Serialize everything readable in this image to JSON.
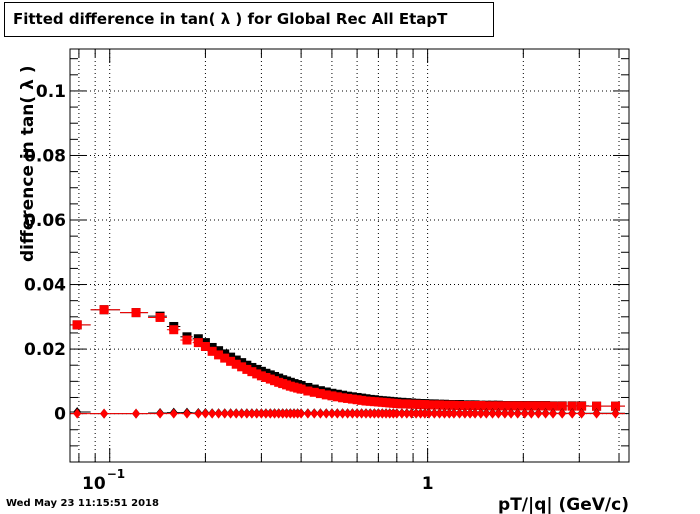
{
  "title": "Fitted difference in tan( λ ) for Global Rec All EtapT",
  "footer": "Wed May 23 11:15:51 2018",
  "chart_data": {
    "type": "scatter",
    "title": "Fitted difference in tan( λ ) for Global Rec All EtapT",
    "xlabel": "pT/|q| (GeV/c)",
    "ylabel": "difference in tan( λ )",
    "x_scale": "log",
    "xlim": [
      0.075,
      4.3
    ],
    "ylim": [
      -0.015,
      0.113
    ],
    "x_tick_labels": [
      {
        "value": 0.1,
        "base": "10",
        "exp": "−1"
      },
      {
        "value": 1,
        "text": "1"
      }
    ],
    "y_ticks": [
      0,
      0.02,
      0.04,
      0.06,
      0.08,
      0.1
    ],
    "y_tick_labels": [
      "0",
      "0.02",
      "0.04",
      "0.06",
      "0.08",
      "0.1"
    ],
    "grid": true,
    "colors": {
      "black_series": "#000000",
      "red_series": "#ff0000"
    },
    "x": [
      0.079,
      0.096,
      0.121,
      0.144,
      0.159,
      0.175,
      0.19,
      0.2,
      0.21,
      0.22,
      0.23,
      0.24,
      0.25,
      0.26,
      0.27,
      0.28,
      0.29,
      0.3,
      0.31,
      0.32,
      0.33,
      0.34,
      0.35,
      0.36,
      0.37,
      0.38,
      0.39,
      0.4,
      0.42,
      0.44,
      0.46,
      0.48,
      0.5,
      0.52,
      0.54,
      0.56,
      0.58,
      0.6,
      0.62,
      0.64,
      0.66,
      0.68,
      0.7,
      0.72,
      0.74,
      0.76,
      0.78,
      0.8,
      0.83,
      0.86,
      0.89,
      0.92,
      0.95,
      0.98,
      1.01,
      1.05,
      1.09,
      1.13,
      1.17,
      1.21,
      1.26,
      1.31,
      1.36,
      1.41,
      1.47,
      1.53,
      1.6,
      1.67,
      1.75,
      1.83,
      1.92,
      2.02,
      2.12,
      2.23,
      2.35,
      2.48,
      2.65,
      2.85,
      3.05,
      3.4,
      3.9
    ],
    "series": [
      {
        "marker": "square",
        "color": "black",
        "values": [
          0.0275,
          0.0322,
          0.0313,
          0.0302,
          0.027,
          0.0238,
          0.0232,
          0.022,
          0.0205,
          0.0195,
          0.0185,
          0.0175,
          0.0166,
          0.0158,
          0.015,
          0.0143,
          0.0137,
          0.0131,
          0.0125,
          0.012,
          0.0115,
          0.011,
          0.0105,
          0.0101,
          0.0097,
          0.0093,
          0.009,
          0.0087,
          0.0081,
          0.0076,
          0.0071,
          0.0067,
          0.0063,
          0.006,
          0.0057,
          0.0054,
          0.0052,
          0.005,
          0.0048,
          0.0046,
          0.0044,
          0.0043,
          0.0041,
          0.004,
          0.0039,
          0.0038,
          0.0037,
          0.0036,
          0.0035,
          0.0034,
          0.0033,
          0.0032,
          0.0031,
          0.0031,
          0.003,
          0.003,
          0.0029,
          0.0029,
          0.0028,
          0.0028,
          0.0028,
          0.0027,
          0.0027,
          0.0027,
          0.0026,
          0.0026,
          0.0026,
          0.0026,
          0.0025,
          0.0025,
          0.0025,
          0.0025,
          0.0025,
          0.0025,
          0.0025,
          0.0024,
          0.0024,
          0.0024,
          0.0024,
          0.0023,
          0.0023
        ]
      },
      {
        "marker": "square",
        "color": "red",
        "values": [
          0.0275,
          0.0322,
          0.0313,
          0.0298,
          0.026,
          0.0228,
          0.022,
          0.0208,
          0.0193,
          0.0182,
          0.0172,
          0.0162,
          0.0153,
          0.0145,
          0.0137,
          0.013,
          0.0123,
          0.0117,
          0.0112,
          0.0107,
          0.0102,
          0.0097,
          0.0093,
          0.0089,
          0.0085,
          0.0082,
          0.0079,
          0.0076,
          0.007,
          0.0066,
          0.0062,
          0.0058,
          0.0055,
          0.0052,
          0.0049,
          0.0047,
          0.0045,
          0.0043,
          0.0041,
          0.0039,
          0.0038,
          0.0037,
          0.0036,
          0.0035,
          0.0034,
          0.0033,
          0.0032,
          0.0031,
          0.003,
          0.003,
          0.0029,
          0.0029,
          0.0028,
          0.0028,
          0.0027,
          0.0027,
          0.0027,
          0.0026,
          0.0026,
          0.0026,
          0.0025,
          0.0025,
          0.0025,
          0.0025,
          0.0025,
          0.0024,
          0.0024,
          0.0024,
          0.0024,
          0.0024,
          0.0024,
          0.0024,
          0.0024,
          0.0024,
          0.0024,
          0.0023,
          0.0023,
          0.0023,
          0.0023,
          0.0023,
          0.0023
        ]
      },
      {
        "marker": "diamond",
        "color": "black",
        "values": [
          0.0005,
          0.0,
          0.0,
          0.0002,
          0.0003,
          0.0003,
          0.0002,
          0.0002,
          0.0001,
          0.0001,
          0.0001,
          0.0001,
          0.0001,
          0.0001,
          0.0001,
          0.0001,
          0.0001,
          0.0001,
          0.0001,
          0.0001,
          0.0001,
          0.0001,
          0.0001,
          0.0001,
          0.0001,
          0.0001,
          0.0001,
          0.0001,
          0.0001,
          0.0001,
          0.0001,
          0.0001,
          0.0001,
          0.0001,
          0.0001,
          0.0001,
          0.0001,
          0.0001,
          0.0001,
          0.0001,
          0.0001,
          0.0001,
          0.0001,
          0.0001,
          0.0001,
          0.0001,
          0.0001,
          0.0001,
          0.0001,
          0.0001,
          0.0001,
          0.0001,
          0.0001,
          0.0001,
          0.0001,
          0.0001,
          0.0001,
          0.0001,
          0.0001,
          0.0001,
          0.0001,
          0.0001,
          0.0001,
          0.0001,
          0.0001,
          0.0001,
          0.0001,
          0.0001,
          0.0001,
          0.0001,
          0.0001,
          0.0001,
          0.0001,
          0.0001,
          0.0001,
          0.0001,
          0.0001,
          0.0001,
          0.0001,
          0.0001,
          0.0001
        ]
      },
      {
        "marker": "diamond",
        "color": "red",
        "values": [
          0.0,
          0.0,
          0.0,
          0.0,
          0.0,
          0.0,
          0.0,
          0.0,
          0.0,
          0.0,
          0.0,
          0.0,
          0.0,
          0.0,
          0.0,
          0.0,
          0.0,
          0.0,
          0.0,
          0.0,
          0.0,
          0.0,
          0.0,
          0.0,
          0.0,
          0.0,
          0.0,
          0.0,
          0.0,
          0.0,
          0.0,
          0.0,
          0.0,
          0.0,
          0.0,
          0.0,
          0.0,
          0.0,
          0.0,
          0.0,
          0.0,
          0.0,
          0.0,
          0.0,
          0.0,
          0.0,
          0.0,
          0.0,
          0.0,
          0.0,
          0.0,
          0.0,
          0.0,
          0.0,
          0.0,
          0.0,
          0.0,
          0.0,
          0.0,
          0.0,
          0.0,
          0.0,
          0.0,
          0.0,
          0.0,
          0.0,
          0.0,
          0.0,
          0.0,
          0.0,
          0.0,
          0.0,
          0.0,
          0.0,
          0.0,
          0.0,
          0.0,
          0.0,
          0.0,
          0.0,
          0.0
        ]
      }
    ]
  }
}
